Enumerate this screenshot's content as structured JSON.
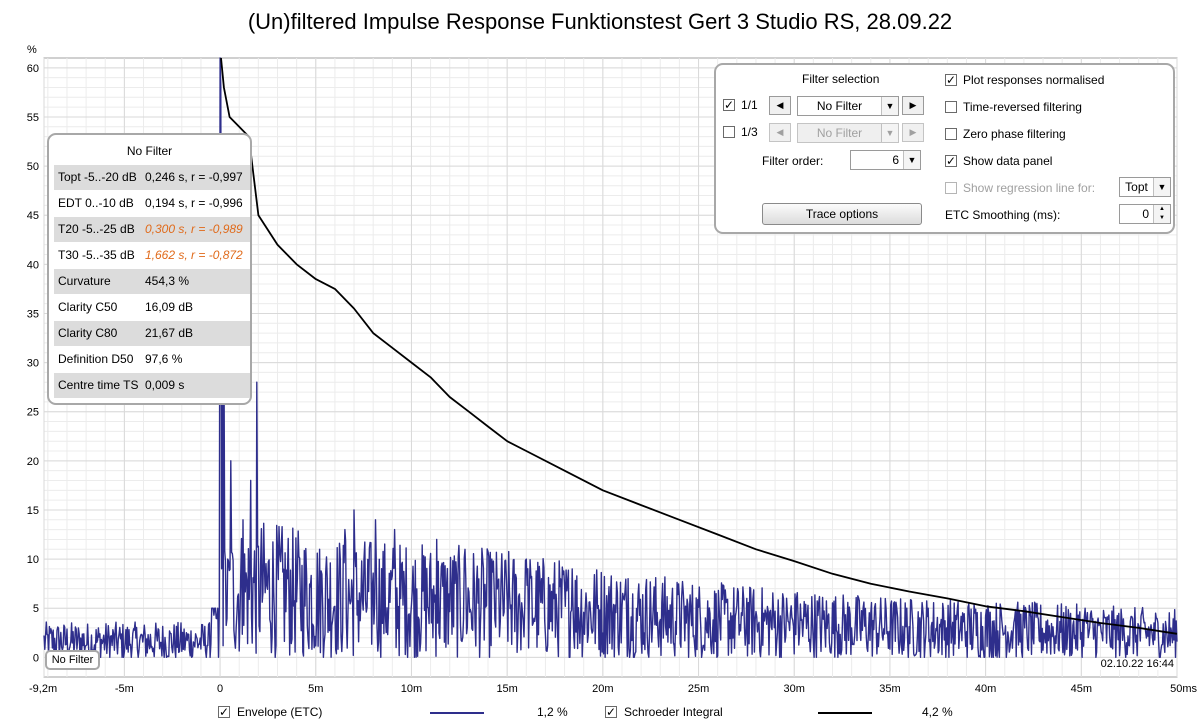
{
  "title": "(Un)filtered Impulse Response Funktionstest Gert 3 Studio RS, 28.09.22",
  "y_unit": "%",
  "timestamp": "02.10.22 16:44",
  "filter_badge": "No Filter",
  "colors": {
    "envelope": "#2e2e8c",
    "schroeder": "#000000",
    "grid": "#d9d9d9",
    "warn": "#e06a1a"
  },
  "chart_data": {
    "type": "line",
    "title": "(Un)filtered Impulse Response Funktionstest Gert 3 Studio RS, 28.09.22",
    "xlabel": "",
    "ylabel": "%",
    "xlim": [
      -9.2,
      50
    ],
    "ylim": [
      -2,
      61
    ],
    "grid": true,
    "x_ticks": [
      "-9,2m",
      "-5m",
      "0",
      "5m",
      "10m",
      "15m",
      "20m",
      "25m",
      "30m",
      "35m",
      "40m",
      "45m",
      "50ms"
    ],
    "x_tick_values": [
      -9.2,
      -5,
      0,
      5,
      10,
      15,
      20,
      25,
      30,
      35,
      40,
      45,
      50
    ],
    "y_ticks": [
      "0",
      "5",
      "10",
      "15",
      "20",
      "25",
      "30",
      "35",
      "40",
      "45",
      "50",
      "55",
      "60"
    ],
    "y_tick_values": [
      0,
      5,
      10,
      15,
      20,
      25,
      30,
      35,
      40,
      45,
      50,
      55,
      60
    ],
    "series": [
      {
        "name": "Envelope (ETC)",
        "color": "#2e2e8c",
        "noise_floor": 1.5,
        "peaks": [
          [
            0.0,
            61
          ],
          [
            0.05,
            58
          ],
          [
            0.1,
            52
          ],
          [
            0.2,
            33
          ],
          [
            0.4,
            10
          ],
          [
            0.55,
            20
          ],
          [
            1.2,
            14
          ],
          [
            1.9,
            28
          ],
          [
            1.6,
            18
          ],
          [
            2.3,
            9
          ],
          [
            3.5,
            8
          ],
          [
            5.2,
            11
          ],
          [
            6.5,
            13
          ],
          [
            7.0,
            15
          ],
          [
            8.1,
            14
          ],
          [
            9.1,
            13
          ],
          [
            11.3,
            12
          ],
          [
            12.8,
            11
          ],
          [
            14.2,
            10
          ],
          [
            16.0,
            10
          ],
          [
            18.4,
            9
          ],
          [
            21.3,
            8
          ],
          [
            24.0,
            6
          ],
          [
            27.5,
            6
          ],
          [
            30.1,
            6
          ],
          [
            33.6,
            5
          ],
          [
            37.0,
            5
          ],
          [
            41.5,
            4
          ],
          [
            45.2,
            5
          ],
          [
            48.8,
            3.5
          ]
        ],
        "envelope_decay_x": [
          -9.2,
          -0.5,
          0.3,
          2,
          5,
          10,
          15,
          20,
          25,
          30,
          35,
          40,
          45,
          50
        ],
        "envelope_decay_y": [
          2.5,
          2.5,
          8,
          9,
          8,
          7.5,
          7,
          6,
          5,
          4.5,
          4,
          3.8,
          3.5,
          3.2
        ]
      },
      {
        "name": "Schroeder Integral",
        "color": "#000000",
        "x": [
          0.05,
          0.2,
          0.5,
          1.0,
          1.5,
          2.0,
          3.0,
          4.0,
          5.0,
          6.0,
          7.0,
          8.0,
          9.0,
          10.0,
          11.0,
          12.0,
          13.0,
          14.0,
          15.0,
          16.0,
          18.0,
          20.0,
          22.0,
          24.0,
          26.0,
          28.0,
          30.0,
          32.0,
          34.0,
          36.0,
          38.0,
          40.0,
          42.0,
          44.0,
          46.0,
          48.0,
          50.0
        ],
        "y": [
          61,
          58,
          55,
          54,
          53,
          45,
          42,
          40,
          38.5,
          37.5,
          35.5,
          33,
          31.5,
          30,
          28.5,
          26.5,
          25,
          23.5,
          22,
          21,
          19,
          17,
          15.5,
          14,
          12.5,
          11,
          9.8,
          8.5,
          7.5,
          6.7,
          6.0,
          5.2,
          4.7,
          4.1,
          3.5,
          3.0,
          2.4
        ]
      }
    ]
  },
  "data_panel": {
    "title": "No Filter",
    "rows": [
      {
        "label": "Topt -5..-20 dB",
        "value": "0,246 s,  r = -0,997",
        "shaded": true,
        "warn": false
      },
      {
        "label": "EDT  0..-10 dB",
        "value": "0,194 s,  r = -0,996",
        "shaded": false,
        "warn": false
      },
      {
        "label": "T20 -5..-25 dB",
        "value": "0,300 s, r = -0,989",
        "shaded": true,
        "warn": true
      },
      {
        "label": "T30 -5..-35 dB",
        "value": "1,662 s, r = -0,872",
        "shaded": false,
        "warn": true
      },
      {
        "label": "Curvature",
        "value": "454,3 %",
        "shaded": true,
        "warn": false
      },
      {
        "label": "Clarity C50",
        "value": "16,09 dB",
        "shaded": false,
        "warn": false
      },
      {
        "label": "Clarity C80",
        "value": "21,67 dB",
        "shaded": true,
        "warn": false
      },
      {
        "label": "Definition D50",
        "value": "97,6 %",
        "shaded": false,
        "warn": false
      },
      {
        "label": "Centre time TS",
        "value": "0,009 s",
        "shaded": true,
        "warn": false
      }
    ]
  },
  "filter_panel": {
    "heading": "Filter selection",
    "row1": {
      "check": "✓",
      "label": "1/1",
      "combo": "No Filter",
      "checked": true
    },
    "row2": {
      "check": "",
      "label": "1/3",
      "combo": "No Filter",
      "checked": false
    },
    "order_label": "Filter order:",
    "order_value": "6",
    "trace_button": "Trace options",
    "left_arrow": "◀",
    "right_arrow": "▶",
    "dropdown_arrow": "▼",
    "options": [
      {
        "label": "Plot responses normalised",
        "checked": true,
        "mark": "✓",
        "disabled": false
      },
      {
        "label": "Time-reversed filtering",
        "checked": false,
        "mark": "",
        "disabled": false
      },
      {
        "label": "Zero phase filtering",
        "checked": false,
        "mark": "",
        "disabled": false
      },
      {
        "label": "Show data panel",
        "checked": true,
        "mark": "✓",
        "disabled": false
      },
      {
        "label": "Show regression line for:",
        "checked": false,
        "mark": "",
        "disabled": true
      }
    ],
    "regression_value": "Topt",
    "smoothing_label": "ETC Smoothing (ms):",
    "smoothing_value": "0"
  },
  "legend": {
    "envelope": {
      "label": "Envelope (ETC)",
      "value": "1,2 %",
      "mark": "✓"
    },
    "schroeder": {
      "label": "Schroeder Integral",
      "value": "4,2 %",
      "mark": "✓"
    }
  }
}
